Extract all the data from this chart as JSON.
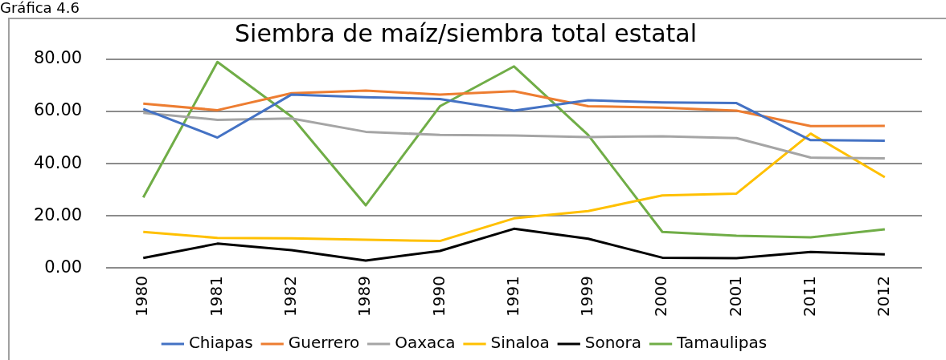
{
  "chart_data": {
    "type": "line",
    "title": "Siembra de maíz/siembra total estatal",
    "annotations": [
      "Gráfica 4.6"
    ],
    "categories": [
      "1980",
      "1981",
      "1982",
      "1989",
      "1990",
      "1991",
      "1999",
      "2000",
      "2001",
      "2011",
      "2012"
    ],
    "series": [
      {
        "name": "Chiapas",
        "color": "#4472c4",
        "values": [
          61,
          50,
          66.5,
          65.5,
          64.8,
          60.3,
          64.3,
          63.5,
          63.2,
          49,
          48.8
        ]
      },
      {
        "name": "Guerrero",
        "color": "#ed7d31",
        "values": [
          63,
          60.5,
          67,
          68,
          66.5,
          67.8,
          62,
          61.5,
          60.3,
          54.4,
          54.5
        ]
      },
      {
        "name": "Oaxaca",
        "color": "#a5a5a5",
        "values": [
          59.5,
          56.8,
          57.3,
          52.2,
          51,
          50.8,
          50.2,
          50.5,
          49.8,
          42.3,
          42
        ]
      },
      {
        "name": "Sinaloa",
        "color": "#ffc000",
        "values": [
          13.8,
          11.5,
          11.3,
          10.8,
          10.3,
          19,
          21.8,
          27.8,
          28.5,
          51.5,
          34.8
        ]
      },
      {
        "name": "Sonora",
        "color": "#000000",
        "values": [
          3.8,
          9.3,
          6.8,
          2.8,
          6.5,
          15,
          11.2,
          3.9,
          3.7,
          6.1,
          5.2
        ]
      },
      {
        "name": "Tamaulipas",
        "color": "#70ad47",
        "values": [
          27,
          79,
          58,
          24,
          62,
          77.3,
          51,
          13.8,
          12.3,
          11.7,
          14.8
        ]
      }
    ],
    "ylim": [
      0,
      80
    ],
    "yticks": [
      {
        "value": 0,
        "label": "0.00"
      },
      {
        "value": 20,
        "label": "20.00"
      },
      {
        "value": 40,
        "label": "40.00"
      },
      {
        "value": 60,
        "label": "60.00"
      },
      {
        "value": 80,
        "label": "80.00"
      }
    ],
    "grid": "y",
    "legend": "bottom",
    "marker": "none",
    "line_style": "solid"
  }
}
